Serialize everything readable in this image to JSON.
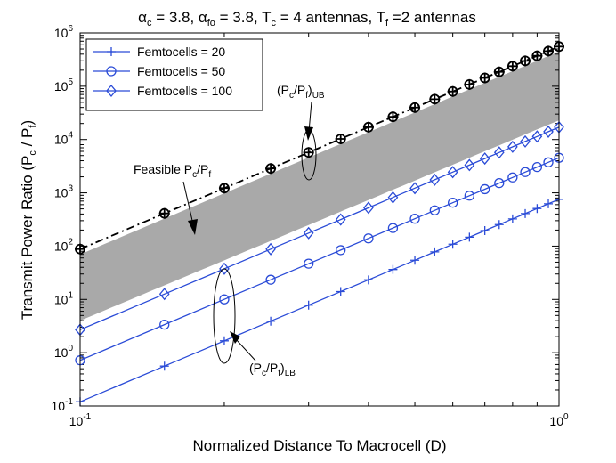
{
  "chart_data": {
    "type": "line",
    "title": {
      "pre": "α",
      "s1": "c",
      "t1": " = 3.8, α",
      "s2": "fo",
      "t2": " = 3.8, T",
      "s3": "c",
      "t3": " = 4 antennas, T",
      "s4": "f",
      "t4": " =2 antennas"
    },
    "xlabel": "Normalized Distance To Macrocell (D)",
    "ylabel": {
      "t1": "Transmit Power Ratio (P",
      "s1": "c",
      "t2": " / P",
      "s2": "f",
      "t3": ")"
    },
    "x_scale": "log",
    "y_scale": "log",
    "xlim": [
      0.1,
      1.0
    ],
    "ylim": [
      0.1,
      1000000
    ],
    "x_ticks": [
      {
        "base": "10",
        "exp": "-1"
      },
      {
        "base": "10",
        "exp": "0"
      }
    ],
    "y_ticks": [
      {
        "base": "10",
        "exp": "-1"
      },
      {
        "base": "10",
        "exp": "0"
      },
      {
        "base": "10",
        "exp": "1"
      },
      {
        "base": "10",
        "exp": "2"
      },
      {
        "base": "10",
        "exp": "3"
      },
      {
        "base": "10",
        "exp": "4"
      },
      {
        "base": "10",
        "exp": "5"
      },
      {
        "base": "10",
        "exp": "6"
      }
    ],
    "x": [
      0.1,
      0.15,
      0.2,
      0.25,
      0.3,
      0.35,
      0.4,
      0.45,
      0.5,
      0.55,
      0.6,
      0.65,
      0.7,
      0.75,
      0.8,
      0.85,
      0.9,
      0.95,
      1.0
    ],
    "series": [
      {
        "name": "Femtocells = 20",
        "marker": "plus",
        "color": "#2a4bd7",
        "y0": 0.12,
        "slope": 3.8
      },
      {
        "name": "Femtocells = 50",
        "marker": "circle",
        "color": "#2a4bd7",
        "y0": 0.72,
        "slope": 3.8
      },
      {
        "name": "Femtocells = 100",
        "marker": "diamond",
        "color": "#2a4bd7",
        "y0": 2.7,
        "slope": 3.8
      },
      {
        "name": "(Pc/Pf)UB",
        "marker": "circle-plus",
        "color": "#000000",
        "y0": 88,
        "slope": 3.8,
        "dashed": true,
        "legend": false
      }
    ],
    "feasible_region": {
      "lower": {
        "y0": 4,
        "y1": 23000
      },
      "upper": {
        "y0": 70,
        "y1": 450000
      },
      "color": "#a9a9a9"
    },
    "annotations": {
      "feasible": {
        "t1": "Feasible P",
        "s1": "c",
        "t2": "/P",
        "s2": "f"
      },
      "ub": {
        "t1": "(P",
        "s1": "c",
        "t2": "/P",
        "s2": "f",
        "t3": ")",
        "s3": "UB"
      },
      "lb": {
        "t1": "(P",
        "s1": "c",
        "t2": "/P",
        "s2": "f",
        "t3": ")",
        "s3": "LB"
      }
    },
    "legend": {
      "position": "top-left"
    }
  }
}
